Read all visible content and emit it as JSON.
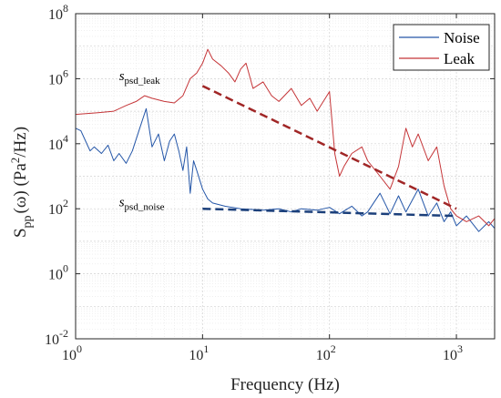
{
  "chart_data": {
    "type": "line",
    "xlabel": "Frequency (Hz)",
    "ylabel_main": "S",
    "ylabel_sub": "pp",
    "ylabel_rest": "(ω) (Pa",
    "ylabel_sup": "2",
    "ylabel_tail": "/Hz)",
    "xscale": "log",
    "yscale": "log",
    "xlim": [
      1,
      2000
    ],
    "ylim": [
      0.01,
      100000000
    ],
    "grid": true,
    "legend_position": "top-right",
    "x_ticks": [
      {
        "value": 1,
        "base": "10",
        "exp": "0"
      },
      {
        "value": 10,
        "base": "10",
        "exp": "1"
      },
      {
        "value": 100,
        "base": "10",
        "exp": "2"
      },
      {
        "value": 1000,
        "base": "10",
        "exp": "3"
      }
    ],
    "y_ticks": [
      {
        "value": 0.01,
        "base": "10",
        "exp": "-2"
      },
      {
        "value": 1,
        "base": "10",
        "exp": "0"
      },
      {
        "value": 100,
        "base": "10",
        "exp": "2"
      },
      {
        "value": 10000,
        "base": "10",
        "exp": "4"
      },
      {
        "value": 1000000,
        "base": "10",
        "exp": "6"
      },
      {
        "value": 100000000,
        "base": "10",
        "exp": "8"
      }
    ],
    "series": [
      {
        "name": "Noise",
        "color": "#2456a8",
        "points": [
          [
            1,
            30000
          ],
          [
            1.1,
            25000
          ],
          [
            1.2,
            12000
          ],
          [
            1.3,
            6000
          ],
          [
            1.4,
            8000
          ],
          [
            1.6,
            5000
          ],
          [
            1.8,
            9000
          ],
          [
            2,
            3000
          ],
          [
            2.2,
            5000
          ],
          [
            2.5,
            2500
          ],
          [
            2.8,
            6000
          ],
          [
            3.2,
            30000
          ],
          [
            3.6,
            120000
          ],
          [
            4,
            8000
          ],
          [
            4.5,
            20000
          ],
          [
            5,
            3000
          ],
          [
            5.5,
            12000
          ],
          [
            6,
            20000
          ],
          [
            6.5,
            6000
          ],
          [
            7,
            1500
          ],
          [
            7.5,
            8000
          ],
          [
            8,
            300
          ],
          [
            8.5,
            3000
          ],
          [
            9,
            1500
          ],
          [
            10,
            400
          ],
          [
            11,
            200
          ],
          [
            12,
            150
          ],
          [
            15,
            120
          ],
          [
            20,
            100
          ],
          [
            30,
            90
          ],
          [
            40,
            100
          ],
          [
            50,
            80
          ],
          [
            60,
            100
          ],
          [
            80,
            90
          ],
          [
            100,
            110
          ],
          [
            120,
            70
          ],
          [
            150,
            120
          ],
          [
            180,
            60
          ],
          [
            200,
            80
          ],
          [
            250,
            300
          ],
          [
            300,
            70
          ],
          [
            350,
            250
          ],
          [
            400,
            80
          ],
          [
            500,
            400
          ],
          [
            600,
            60
          ],
          [
            700,
            150
          ],
          [
            800,
            40
          ],
          [
            900,
            80
          ],
          [
            1000,
            30
          ],
          [
            1200,
            60
          ],
          [
            1500,
            20
          ],
          [
            1800,
            40
          ],
          [
            2000,
            25
          ]
        ],
        "trend": {
          "label": "psd_noise",
          "x1": 10,
          "y1": 100,
          "x2": 1000,
          "y2": 60
        }
      },
      {
        "name": "Leak",
        "color": "#c53538",
        "points": [
          [
            1,
            80000
          ],
          [
            1.5,
            90000
          ],
          [
            2,
            100000
          ],
          [
            2.5,
            150000
          ],
          [
            3,
            200000
          ],
          [
            3.5,
            300000
          ],
          [
            4,
            250000
          ],
          [
            5,
            200000
          ],
          [
            6,
            180000
          ],
          [
            7,
            300000
          ],
          [
            8,
            1000000
          ],
          [
            9,
            1500000
          ],
          [
            10,
            3000000
          ],
          [
            11,
            8000000
          ],
          [
            12,
            4000000
          ],
          [
            14,
            2500000
          ],
          [
            16,
            1500000
          ],
          [
            18,
            800000
          ],
          [
            20,
            2000000
          ],
          [
            22,
            3000000
          ],
          [
            25,
            500000
          ],
          [
            30,
            800000
          ],
          [
            35,
            300000
          ],
          [
            40,
            200000
          ],
          [
            50,
            500000
          ],
          [
            60,
            150000
          ],
          [
            70,
            250000
          ],
          [
            80,
            100000
          ],
          [
            100,
            400000
          ],
          [
            110,
            5000
          ],
          [
            120,
            1000
          ],
          [
            130,
            2000
          ],
          [
            150,
            5000
          ],
          [
            180,
            8000
          ],
          [
            200,
            3000
          ],
          [
            250,
            1000
          ],
          [
            300,
            400
          ],
          [
            350,
            2000
          ],
          [
            400,
            30000
          ],
          [
            450,
            8000
          ],
          [
            500,
            20000
          ],
          [
            600,
            3000
          ],
          [
            700,
            8000
          ],
          [
            800,
            500
          ],
          [
            900,
            100
          ],
          [
            1000,
            60
          ],
          [
            1200,
            40
          ],
          [
            1500,
            60
          ],
          [
            1800,
            30
          ],
          [
            2000,
            50
          ]
        ],
        "trend": {
          "label": "psd_leak",
          "x1": 10,
          "y1": 600000,
          "x2": 1000,
          "y2": 100
        }
      }
    ],
    "annotations": [
      {
        "main": "s",
        "sub": "psd_leak",
        "x": 2.2,
        "y": 900000
      },
      {
        "main": "s",
        "sub": "psd_noise",
        "x": 2.2,
        "y": 120
      }
    ]
  }
}
